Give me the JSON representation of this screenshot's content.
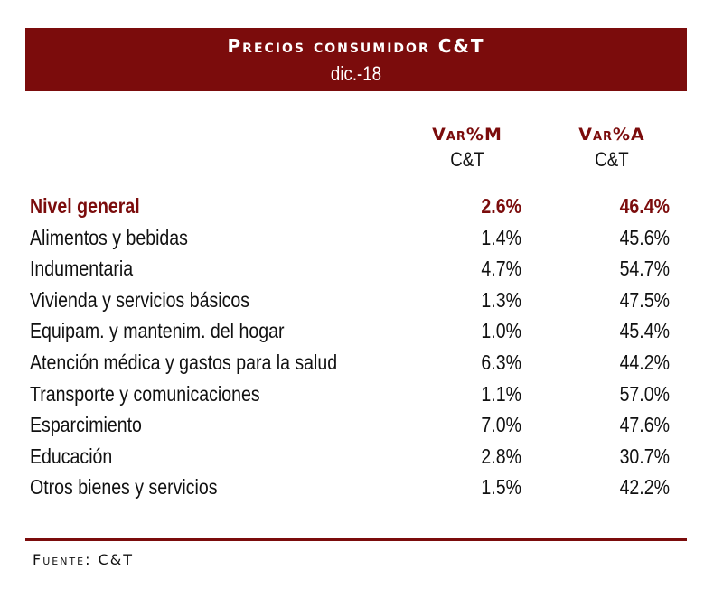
{
  "header": {
    "title": "Precios consumidor C&T",
    "subtitle": "dic.-18"
  },
  "columns": {
    "monthly": {
      "label": "Var%M",
      "source": "C&T"
    },
    "annual": {
      "label": "Var%A",
      "source": "C&T"
    }
  },
  "rows": [
    {
      "label": "Nivel general",
      "monthly": "2.6%",
      "annual": "46.4%"
    },
    {
      "label": "Alimentos y bebidas",
      "monthly": "1.4%",
      "annual": "45.6%"
    },
    {
      "label": "Indumentaria",
      "monthly": "4.7%",
      "annual": "54.7%"
    },
    {
      "label": "Vivienda y servicios básicos",
      "monthly": "1.3%",
      "annual": "47.5%"
    },
    {
      "label": "Equipam. y mantenim. del hogar",
      "monthly": "1.0%",
      "annual": "45.4%"
    },
    {
      "label": "Atención médica y gastos para la salud",
      "monthly": "6.3%",
      "annual": "44.2%"
    },
    {
      "label": "Transporte y comunicaciones",
      "monthly": "1.1%",
      "annual": "57.0%"
    },
    {
      "label": "Esparcimiento",
      "monthly": "7.0%",
      "annual": "47.6%"
    },
    {
      "label": "Educación",
      "monthly": "2.8%",
      "annual": "30.7%"
    },
    {
      "label": "Otros bienes y servicios",
      "monthly": "1.5%",
      "annual": "42.2%"
    }
  ],
  "footer": {
    "text": "Fuente: C&T"
  },
  "colors": {
    "accent": "#7b0c0c"
  }
}
